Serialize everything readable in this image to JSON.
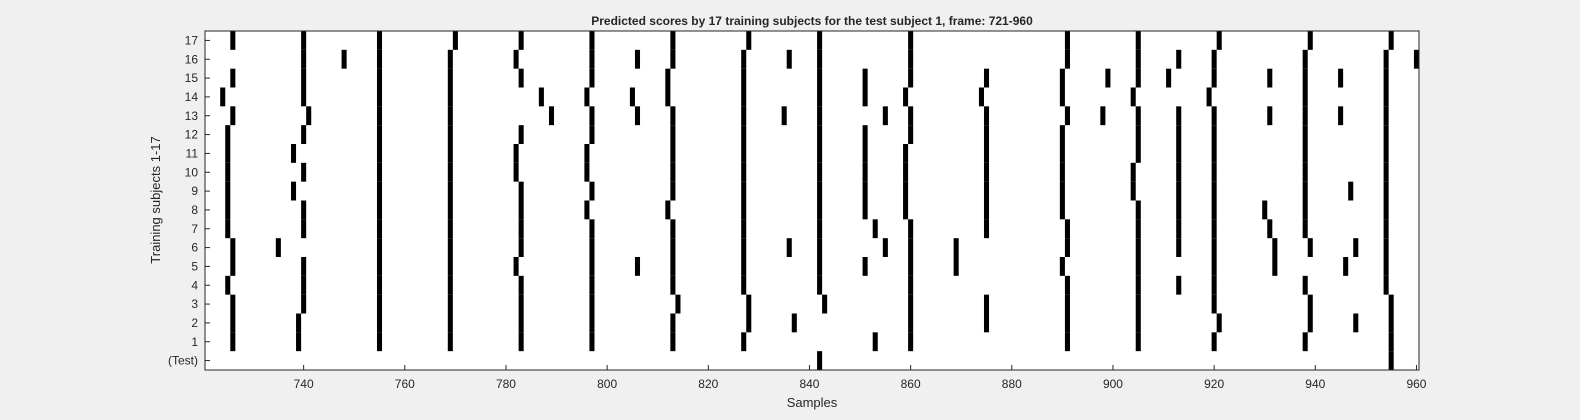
{
  "chart_data": {
    "type": "heatmap",
    "title": "Predicted scores by 17 training subjects for the test subject 1, frame: 721-960",
    "xlabel": "Samples",
    "ylabel": "Training subjects 1-17",
    "xlim": [
      721,
      960
    ],
    "xticks": [
      740,
      760,
      780,
      800,
      820,
      840,
      860,
      880,
      900,
      920,
      940,
      960
    ],
    "row_labels": [
      "(Test)",
      "1",
      "2",
      "3",
      "4",
      "5",
      "6",
      "7",
      "8",
      "9",
      "10",
      "11",
      "12",
      "13",
      "14",
      "15",
      "16",
      "17"
    ],
    "grid": false,
    "colors": {
      "background": "#ffffff",
      "mark": "#000000",
      "figure": "#f0f0f0",
      "text": "#262626"
    },
    "rows": [
      {
        "label": "(Test)",
        "samples": [
          842,
          955
        ]
      },
      {
        "label": "1",
        "samples": [
          726,
          739,
          755,
          769,
          783,
          797,
          813,
          827,
          853,
          860,
          891,
          905,
          920,
          938,
          955
        ]
      },
      {
        "label": "2",
        "samples": [
          726,
          739,
          755,
          769,
          783,
          797,
          813,
          828,
          837,
          860,
          875,
          891,
          905,
          921,
          939,
          948,
          955
        ]
      },
      {
        "label": "3",
        "samples": [
          726,
          740,
          755,
          769,
          783,
          797,
          814,
          828,
          843,
          860,
          875,
          891,
          905,
          920,
          939,
          955
        ]
      },
      {
        "label": "4",
        "samples": [
          725,
          740,
          755,
          769,
          783,
          797,
          813,
          827,
          842,
          860,
          891,
          905,
          913,
          920,
          938,
          954
        ]
      },
      {
        "label": "5",
        "samples": [
          726,
          740,
          755,
          769,
          782,
          797,
          806,
          813,
          827,
          842,
          851,
          860,
          869,
          890,
          905,
          920,
          932,
          946,
          954
        ]
      },
      {
        "label": "6",
        "samples": [
          726,
          735,
          755,
          769,
          783,
          797,
          813,
          827,
          836,
          842,
          855,
          860,
          869,
          891,
          905,
          913,
          920,
          932,
          939,
          948,
          954
        ]
      },
      {
        "label": "7",
        "samples": [
          725,
          740,
          755,
          769,
          783,
          797,
          813,
          827,
          842,
          853,
          860,
          875,
          891,
          905,
          913,
          920,
          931,
          938,
          954
        ]
      },
      {
        "label": "8",
        "samples": [
          725,
          740,
          755,
          769,
          783,
          796,
          812,
          827,
          842,
          851,
          859,
          875,
          890,
          905,
          913,
          920,
          930,
          938,
          954
        ]
      },
      {
        "label": "9",
        "samples": [
          725,
          738,
          755,
          769,
          783,
          797,
          813,
          827,
          842,
          851,
          859,
          875,
          890,
          904,
          913,
          920,
          938,
          947,
          954
        ]
      },
      {
        "label": "10",
        "samples": [
          725,
          740,
          755,
          769,
          782,
          796,
          813,
          827,
          842,
          851,
          859,
          875,
          890,
          904,
          913,
          920,
          938,
          954
        ]
      },
      {
        "label": "11",
        "samples": [
          725,
          738,
          755,
          769,
          782,
          796,
          813,
          827,
          842,
          851,
          859,
          875,
          890,
          905,
          913,
          920,
          938,
          954
        ]
      },
      {
        "label": "12",
        "samples": [
          725,
          740,
          755,
          769,
          783,
          797,
          813,
          827,
          842,
          851,
          860,
          875,
          890,
          905,
          913,
          920,
          938,
          954
        ]
      },
      {
        "label": "13",
        "samples": [
          726,
          741,
          755,
          769,
          789,
          797,
          806,
          813,
          827,
          835,
          842,
          855,
          860,
          875,
          891,
          898,
          905,
          913,
          920,
          931,
          938,
          945,
          954
        ]
      },
      {
        "label": "14",
        "samples": [
          724,
          740,
          755,
          769,
          787,
          796,
          805,
          812,
          827,
          842,
          851,
          859,
          874,
          890,
          904,
          919,
          938,
          954
        ]
      },
      {
        "label": "15",
        "samples": [
          726,
          740,
          755,
          769,
          783,
          797,
          812,
          827,
          842,
          851,
          860,
          875,
          890,
          899,
          905,
          911,
          920,
          931,
          938,
          945,
          954
        ]
      },
      {
        "label": "16",
        "samples": [
          740,
          748,
          755,
          769,
          782,
          797,
          806,
          813,
          827,
          836,
          842,
          860,
          891,
          905,
          913,
          920,
          938,
          954,
          960
        ]
      },
      {
        "label": "17",
        "samples": [
          726,
          740,
          755,
          770,
          783,
          797,
          813,
          828,
          842,
          860,
          891,
          905,
          921,
          939,
          955
        ]
      }
    ]
  }
}
